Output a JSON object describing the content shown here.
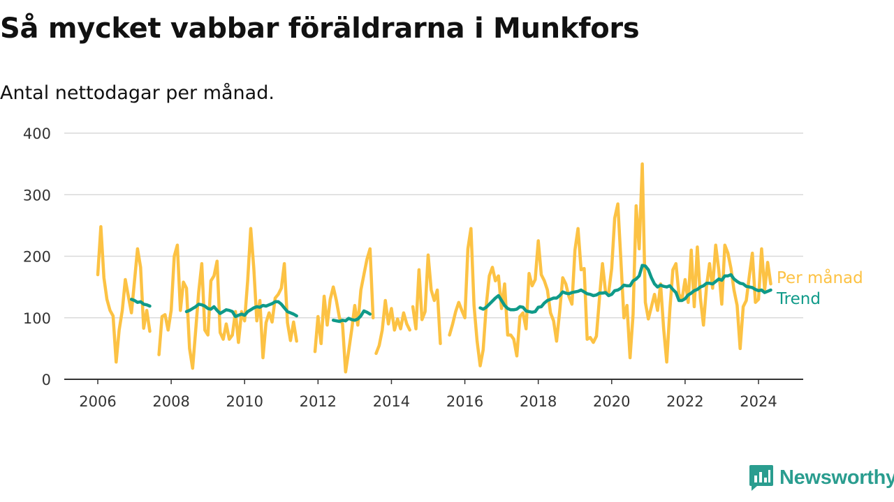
{
  "title": "Så mycket vabbar föräldrarna i Munkfors",
  "subtitle": "Antal nettodagar per månad.",
  "brand": {
    "name": "Newsworthy",
    "color": "#2a9d8f",
    "icon": "newsworthy-chart-icon"
  },
  "colors": {
    "monthly": "#fcc244",
    "trend": "#0f9a89",
    "grid": "#d9d9d9",
    "axis": "#333333"
  },
  "chart_data": {
    "type": "line",
    "title": "Så mycket vabbar föräldrarna i Munkfors",
    "subtitle": "Antal nettodagar per månad.",
    "xlabel": "",
    "ylabel": "",
    "xlim": [
      2004.95,
      2025.1
    ],
    "ylim": [
      0,
      400
    ],
    "y_ticks": [
      0,
      100,
      200,
      300,
      400
    ],
    "x_ticks": [
      2006,
      2008,
      2010,
      2012,
      2014,
      2016,
      2018,
      2020,
      2022,
      2024
    ],
    "x_tick_labels": [
      "2006",
      "2008",
      "2010",
      "2012",
      "2014",
      "2016",
      "2018",
      "2020",
      "2022",
      "2024"
    ],
    "grid": "horizontal",
    "legend": "right, at end of lines",
    "series": [
      {
        "name": "Per månad",
        "color": "#fcc244",
        "segments": [
          {
            "x": [
              2006.0,
              2006.083,
              2006.167,
              2006.25,
              2006.333,
              2006.417,
              2006.5,
              2006.583,
              2006.667,
              2006.75,
              2006.833,
              2006.917,
              2007.0,
              2007.083,
              2007.167,
              2007.25,
              2007.333,
              2007.417,
              2007.5
            ],
            "y": [
              170,
              248,
              165,
              130,
              112,
              103,
              28,
              80,
              112,
              162,
              135,
              108,
              160,
              212,
              182,
              83,
              112,
              78,
              null
            ]
          },
          {
            "x": [
              2007.667,
              2007.75,
              2007.833,
              2007.917,
              2008.0,
              2008.083,
              2008.167,
              2008.25,
              2008.333,
              2008.417,
              2008.5,
              2008.583,
              2008.667,
              2008.75,
              2008.833,
              2008.917,
              2009.0,
              2009.083,
              2009.167,
              2009.25,
              2009.333,
              2009.417,
              2009.5,
              2009.583,
              2009.667,
              2009.75,
              2009.833,
              2009.917,
              2010.0,
              2010.083,
              2010.167,
              2010.25,
              2010.333,
              2010.417,
              2010.5,
              2010.583,
              2010.667,
              2010.75,
              2010.833,
              2010.917,
              2011.0,
              2011.083,
              2011.167,
              2011.25,
              2011.333,
              2011.417
            ],
            "y": [
              40,
              102,
              105,
              80,
              112,
              200,
              218,
              112,
              158,
              148,
              50,
              18,
              80,
              142,
              188,
              80,
              72,
              160,
              168,
              192,
              76,
              65,
              90,
              65,
              72,
              110,
              60,
              110,
              95,
              160,
              245,
              180,
              95,
              128,
              35,
              92,
              108,
              93,
              132,
              138,
              148,
              188,
              92,
              63,
              93,
              62
            ]
          },
          {
            "x": [
              2011.917,
              2012.0,
              2012.083,
              2012.167,
              2012.25,
              2012.333,
              2012.417,
              2012.5,
              2012.583,
              2012.667,
              2012.75,
              2012.833,
              2012.917,
              2013.0,
              2013.083,
              2013.167,
              2013.25,
              2013.333,
              2013.417,
              2013.5
            ],
            "y": [
              45,
              102,
              58,
              135,
              88,
              130,
              150,
              128,
              100,
              90,
              12,
              45,
              80,
              120,
              88,
              145,
              170,
              195,
              212,
              100
            ]
          },
          {
            "x": [
              2013.583,
              2013.667,
              2013.75,
              2013.833,
              2013.917,
              2014.0,
              2014.083,
              2014.167,
              2014.25,
              2014.333,
              2014.417,
              2014.5
            ],
            "y": [
              42,
              55,
              80,
              128,
              90,
              115,
              80,
              98,
              82,
              108,
              90,
              80
            ]
          },
          {
            "x": [
              2014.583,
              2014.667,
              2014.75,
              2014.833,
              2014.917,
              2015.0,
              2015.083,
              2015.167,
              2015.25,
              2015.333
            ],
            "y": [
              118,
              82,
              178,
              97,
              110,
              202,
              145,
              128,
              145,
              58
            ]
          },
          {
            "x": [
              2015.583,
              2015.667,
              2015.75,
              2015.833,
              2015.917,
              2016.0,
              2016.083,
              2016.167,
              2016.25,
              2016.333,
              2016.417,
              2016.5,
              2016.583,
              2016.667,
              2016.75,
              2016.833,
              2016.917,
              2017.0,
              2017.083,
              2017.167,
              2017.25,
              2017.333,
              2017.417,
              2017.5,
              2017.583,
              2017.667,
              2017.75,
              2017.833,
              2017.917,
              2018.0,
              2018.083,
              2018.167,
              2018.25,
              2018.333,
              2018.417,
              2018.5,
              2018.583,
              2018.667,
              2018.75,
              2018.833,
              2018.917,
              2019.0,
              2019.083,
              2019.167,
              2019.25,
              2019.333,
              2019.417,
              2019.5,
              2019.583,
              2019.667,
              2019.75,
              2019.833,
              2019.917,
              2020.0,
              2020.083,
              2020.167,
              2020.25,
              2020.333,
              2020.417,
              2020.5,
              2020.583,
              2020.667,
              2020.75,
              2020.833,
              2020.917,
              2021.0,
              2021.083,
              2021.167,
              2021.25,
              2021.333,
              2021.417,
              2021.5,
              2021.583,
              2021.667,
              2021.75,
              2021.833,
              2021.917,
              2022.0,
              2022.083,
              2022.167,
              2022.25,
              2022.333,
              2022.417,
              2022.5,
              2022.583,
              2022.667,
              2022.75,
              2022.833,
              2022.917,
              2023.0,
              2023.083,
              2023.167,
              2023.25,
              2023.333,
              2023.417,
              2023.5,
              2023.583,
              2023.667,
              2023.75,
              2023.833,
              2023.917,
              2024.0,
              2024.083,
              2024.167,
              2024.25,
              2024.333
            ],
            "y": [
              72,
              90,
              110,
              125,
              112,
              100,
              212,
              245,
              120,
              62,
              22,
              48,
              120,
              168,
              182,
              160,
              168,
              115,
              155,
              72,
              72,
              65,
              38,
              102,
              108,
              82,
              172,
              152,
              162,
              225,
              170,
              160,
              145,
              108,
              95,
              62,
              110,
              165,
              155,
              135,
              122,
              210,
              245,
              178,
              180,
              65,
              68,
              60,
              70,
              132,
              188,
              142,
              140,
              180,
              262,
              285,
              195,
              100,
              120,
              35,
              105,
              282,
              212,
              350,
              125,
              98,
              118,
              138,
              112,
              155,
              82,
              28,
              112,
              178,
              188,
              138,
              130,
              162,
              125,
              210,
              118,
              215,
              132,
              88,
              150,
              188,
              148,
              218,
              178,
              122,
              218,
              205,
              180,
              145,
              120,
              50,
              118,
              128,
              168,
              205,
              125,
              130,
              212,
              145,
              190,
              155
            ]
          }
        ]
      },
      {
        "name": "Trend",
        "color": "#0f9a89",
        "segments": [
          {
            "x": [
              2006.917,
              2007.0,
              2007.083,
              2007.167,
              2007.25,
              2007.333,
              2007.417
            ],
            "y": [
              130,
              128,
              125,
              126,
              122,
              121,
              119
            ]
          },
          {
            "x": [
              2008.417,
              2008.5,
              2008.583,
              2008.667,
              2008.75,
              2008.833,
              2008.917,
              2009.0,
              2009.083,
              2009.167,
              2009.25,
              2009.333,
              2009.417,
              2009.5,
              2009.583,
              2009.667,
              2009.75,
              2009.833,
              2009.917,
              2010.0,
              2010.083,
              2010.167,
              2010.25,
              2010.333,
              2010.417,
              2010.5,
              2010.583,
              2010.667,
              2010.75,
              2010.833,
              2010.917,
              2011.0,
              2011.083,
              2011.167,
              2011.25,
              2011.333,
              2011.417
            ],
            "y": [
              110,
              112,
              115,
              118,
              122,
              121,
              119,
              115,
              114,
              118,
              112,
              107,
              110,
              113,
              112,
              110,
              102,
              104,
              106,
              104,
              110,
              113,
              116,
              118,
              117,
              120,
              119,
              121,
              123,
              126,
              126,
              122,
              116,
              110,
              108,
              106,
              103
            ]
          },
          {
            "x": [
              2012.417,
              2012.5,
              2012.583,
              2012.667,
              2012.75,
              2012.833,
              2012.917,
              2013.0,
              2013.083,
              2013.167,
              2013.25,
              2013.333,
              2013.417
            ],
            "y": [
              96,
              95,
              94,
              96,
              95,
              99,
              97,
              96,
              98,
              103,
              111,
              109,
              106
            ]
          },
          {
            "x": [
              2016.417,
              2016.5,
              2016.583,
              2016.667,
              2016.75,
              2016.833,
              2016.917,
              2017.0,
              2017.083,
              2017.167,
              2017.25,
              2017.333,
              2017.417,
              2017.5,
              2017.583,
              2017.667,
              2017.75,
              2017.833,
              2017.917,
              2018.0,
              2018.083,
              2018.167,
              2018.25,
              2018.333,
              2018.417,
              2018.5,
              2018.583,
              2018.667,
              2018.75,
              2018.833,
              2018.917,
              2019.0,
              2019.083,
              2019.167,
              2019.25,
              2019.333,
              2019.417,
              2019.5,
              2019.583,
              2019.667,
              2019.75,
              2019.833,
              2019.917,
              2020.0,
              2020.083,
              2020.167,
              2020.25,
              2020.333,
              2020.417,
              2020.5,
              2020.583,
              2020.667,
              2020.75,
              2020.833,
              2020.917,
              2021.0,
              2021.083,
              2021.167,
              2021.25,
              2021.333,
              2021.417,
              2021.5,
              2021.583,
              2021.667,
              2021.75,
              2021.833,
              2021.917,
              2022.0,
              2022.083,
              2022.167,
              2022.25,
              2022.333,
              2022.417,
              2022.5,
              2022.583,
              2022.667,
              2022.75,
              2022.833,
              2022.917,
              2023.0,
              2023.083,
              2023.167,
              2023.25,
              2023.333,
              2023.417,
              2023.5,
              2023.583,
              2023.667,
              2023.75,
              2023.833,
              2023.917,
              2024.0,
              2024.083,
              2024.167,
              2024.25,
              2024.333
            ],
            "y": [
              116,
              114,
              117,
              122,
              127,
              132,
              136,
              128,
              120,
              115,
              113,
              113,
              114,
              118,
              117,
              111,
              110,
              109,
              110,
              117,
              118,
              124,
              128,
              130,
              132,
              132,
              136,
              142,
              140,
              139,
              141,
              142,
              143,
              145,
              142,
              139,
              138,
              136,
              137,
              140,
              140,
              141,
              136,
              138,
              144,
              145,
              148,
              153,
              152,
              152,
              160,
              163,
              168,
              185,
              184,
              178,
              165,
              155,
              150,
              153,
              151,
              150,
              152,
              146,
              141,
              128,
              128,
              131,
              137,
              140,
              144,
              146,
              150,
              152,
              156,
              156,
              155,
              159,
              163,
              161,
              168,
              168,
              170,
              163,
              159,
              156,
              155,
              151,
              150,
              149,
              146,
              144,
              145,
              141,
              143,
              145
            ]
          }
        ]
      }
    ]
  }
}
